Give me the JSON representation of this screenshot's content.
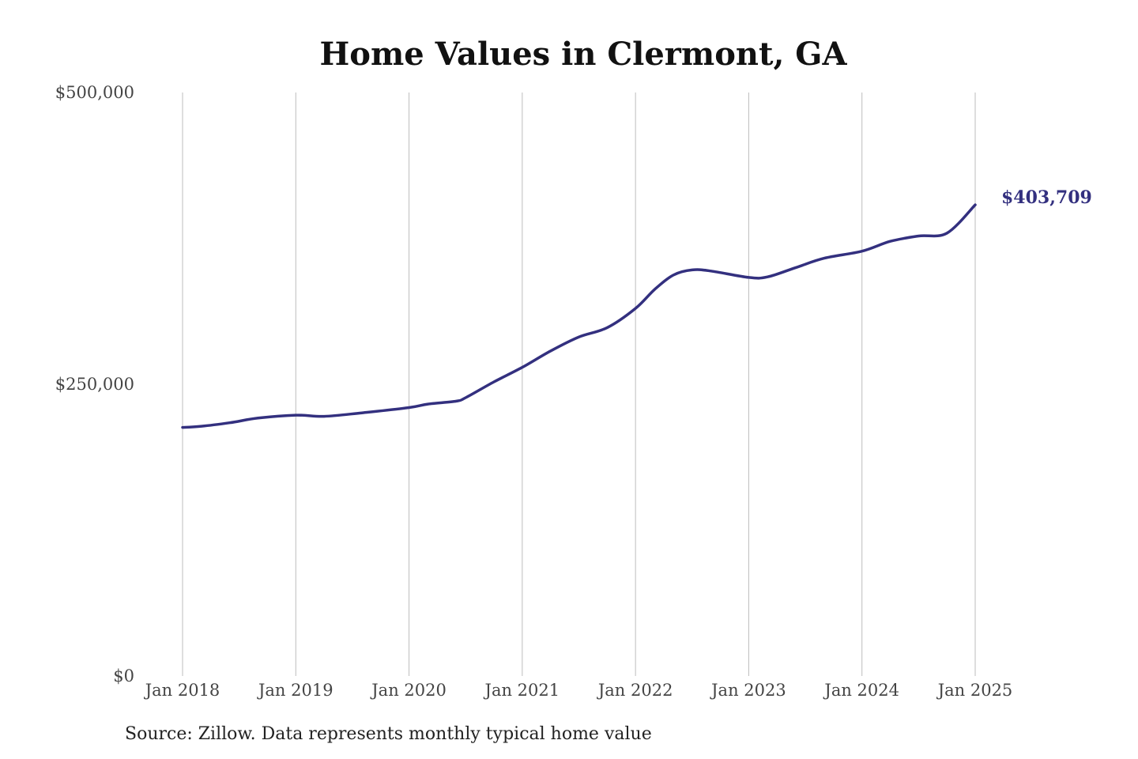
{
  "chart_data": {
    "type": "line",
    "title": "Home Values in Clermont, GA",
    "xlabel": "",
    "ylabel": "",
    "x_ticks": [
      "Jan 2018",
      "Jan 2019",
      "Jan 2020",
      "Jan 2021",
      "Jan 2022",
      "Jan 2023",
      "Jan 2024",
      "Jan 2025"
    ],
    "x_tick_years": [
      2018,
      2019,
      2020,
      2021,
      2022,
      2023,
      2024,
      2025
    ],
    "y_ticks": [
      {
        "value": 0,
        "label": "$0"
      },
      {
        "value": 250000,
        "label": "$250,000"
      },
      {
        "value": 500000,
        "label": "$500,000"
      }
    ],
    "ylim": [
      0,
      500000
    ],
    "xlim": [
      "2018-01",
      "2025-01"
    ],
    "grid": {
      "vertical": true,
      "horizontal": false
    },
    "legend": "none",
    "series": [
      {
        "color": "#33307f",
        "points": [
          {
            "x": "2018-01",
            "y": 213000
          },
          {
            "x": "2018-03",
            "y": 214000
          },
          {
            "x": "2018-06",
            "y": 217000
          },
          {
            "x": "2018-09",
            "y": 221000
          },
          {
            "x": "2019-01",
            "y": 223500
          },
          {
            "x": "2019-04",
            "y": 222500
          },
          {
            "x": "2019-08",
            "y": 225500
          },
          {
            "x": "2020-01",
            "y": 230000
          },
          {
            "x": "2020-03",
            "y": 233000
          },
          {
            "x": "2020-06",
            "y": 235500
          },
          {
            "x": "2020-07",
            "y": 238500
          },
          {
            "x": "2020-10",
            "y": 252000
          },
          {
            "x": "2021-01",
            "y": 264500
          },
          {
            "x": "2021-04",
            "y": 278500
          },
          {
            "x": "2021-07",
            "y": 290500
          },
          {
            "x": "2021-10",
            "y": 298500
          },
          {
            "x": "2022-01",
            "y": 315000
          },
          {
            "x": "2022-03",
            "y": 331000
          },
          {
            "x": "2022-05",
            "y": 343500
          },
          {
            "x": "2022-07",
            "y": 348000
          },
          {
            "x": "2022-09",
            "y": 347000
          },
          {
            "x": "2023-01",
            "y": 341500
          },
          {
            "x": "2023-03",
            "y": 342000
          },
          {
            "x": "2023-06",
            "y": 350000
          },
          {
            "x": "2023-09",
            "y": 358000
          },
          {
            "x": "2024-01",
            "y": 364000
          },
          {
            "x": "2024-04",
            "y": 372500
          },
          {
            "x": "2024-07",
            "y": 377000
          },
          {
            "x": "2024-10",
            "y": 379500
          },
          {
            "x": "2025-01",
            "y": 403709
          }
        ]
      }
    ],
    "annotations": [
      {
        "text": "$403,709",
        "x": "2025-01",
        "y": 403709,
        "color": "#33307f"
      }
    ],
    "source": "Source: Zillow. Data represents monthly typical home value"
  }
}
